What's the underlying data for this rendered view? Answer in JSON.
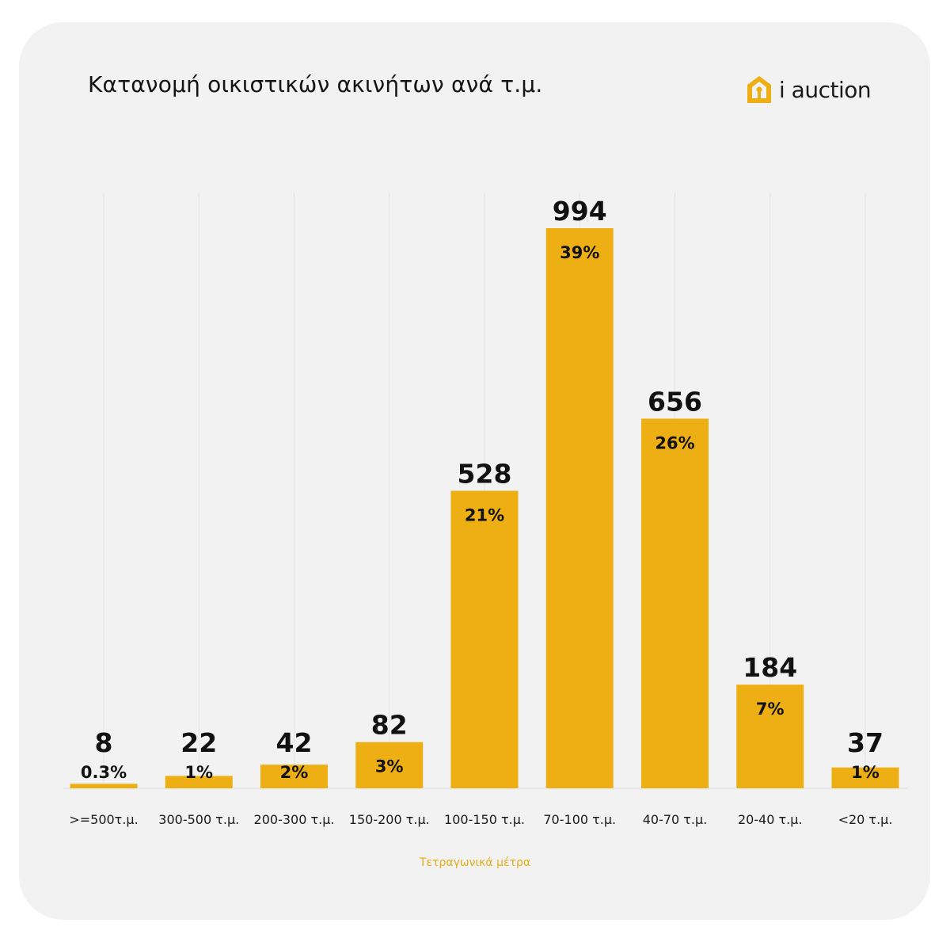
{
  "title": "Κατανομή οικιστικών ακινήτων ανά τ.μ.",
  "brand": {
    "name": "i auction",
    "logo_icon": "house-logo-icon"
  },
  "colors": {
    "bar": "#eeaf14",
    "background": "#f2f2f2",
    "accent": "#e6ac14",
    "grid": "#e3e3e3"
  },
  "chart_data": {
    "type": "bar",
    "xlabel": "Τετραγωνικά μέτρα",
    "ylabel": "",
    "grid": true,
    "categories": [
      ">=500τ.μ.",
      "300-500 τ.μ.",
      "200-300 τ.μ.",
      "150-200 τ.μ.",
      "100-150 τ.μ.",
      "70-100 τ.μ.",
      "40-70 τ.μ.",
      "20-40 τ.μ.",
      "<20 τ.μ."
    ],
    "values": [
      8,
      22,
      42,
      82,
      528,
      994,
      656,
      184,
      37
    ],
    "value_labels": [
      "8",
      "22",
      "42",
      "82",
      "528",
      "994",
      "656",
      "184",
      "37"
    ],
    "percent_labels": [
      "0.3%",
      "1%",
      "2%",
      "3%",
      "21%",
      "39%",
      "26%",
      "7%",
      "1%"
    ]
  }
}
